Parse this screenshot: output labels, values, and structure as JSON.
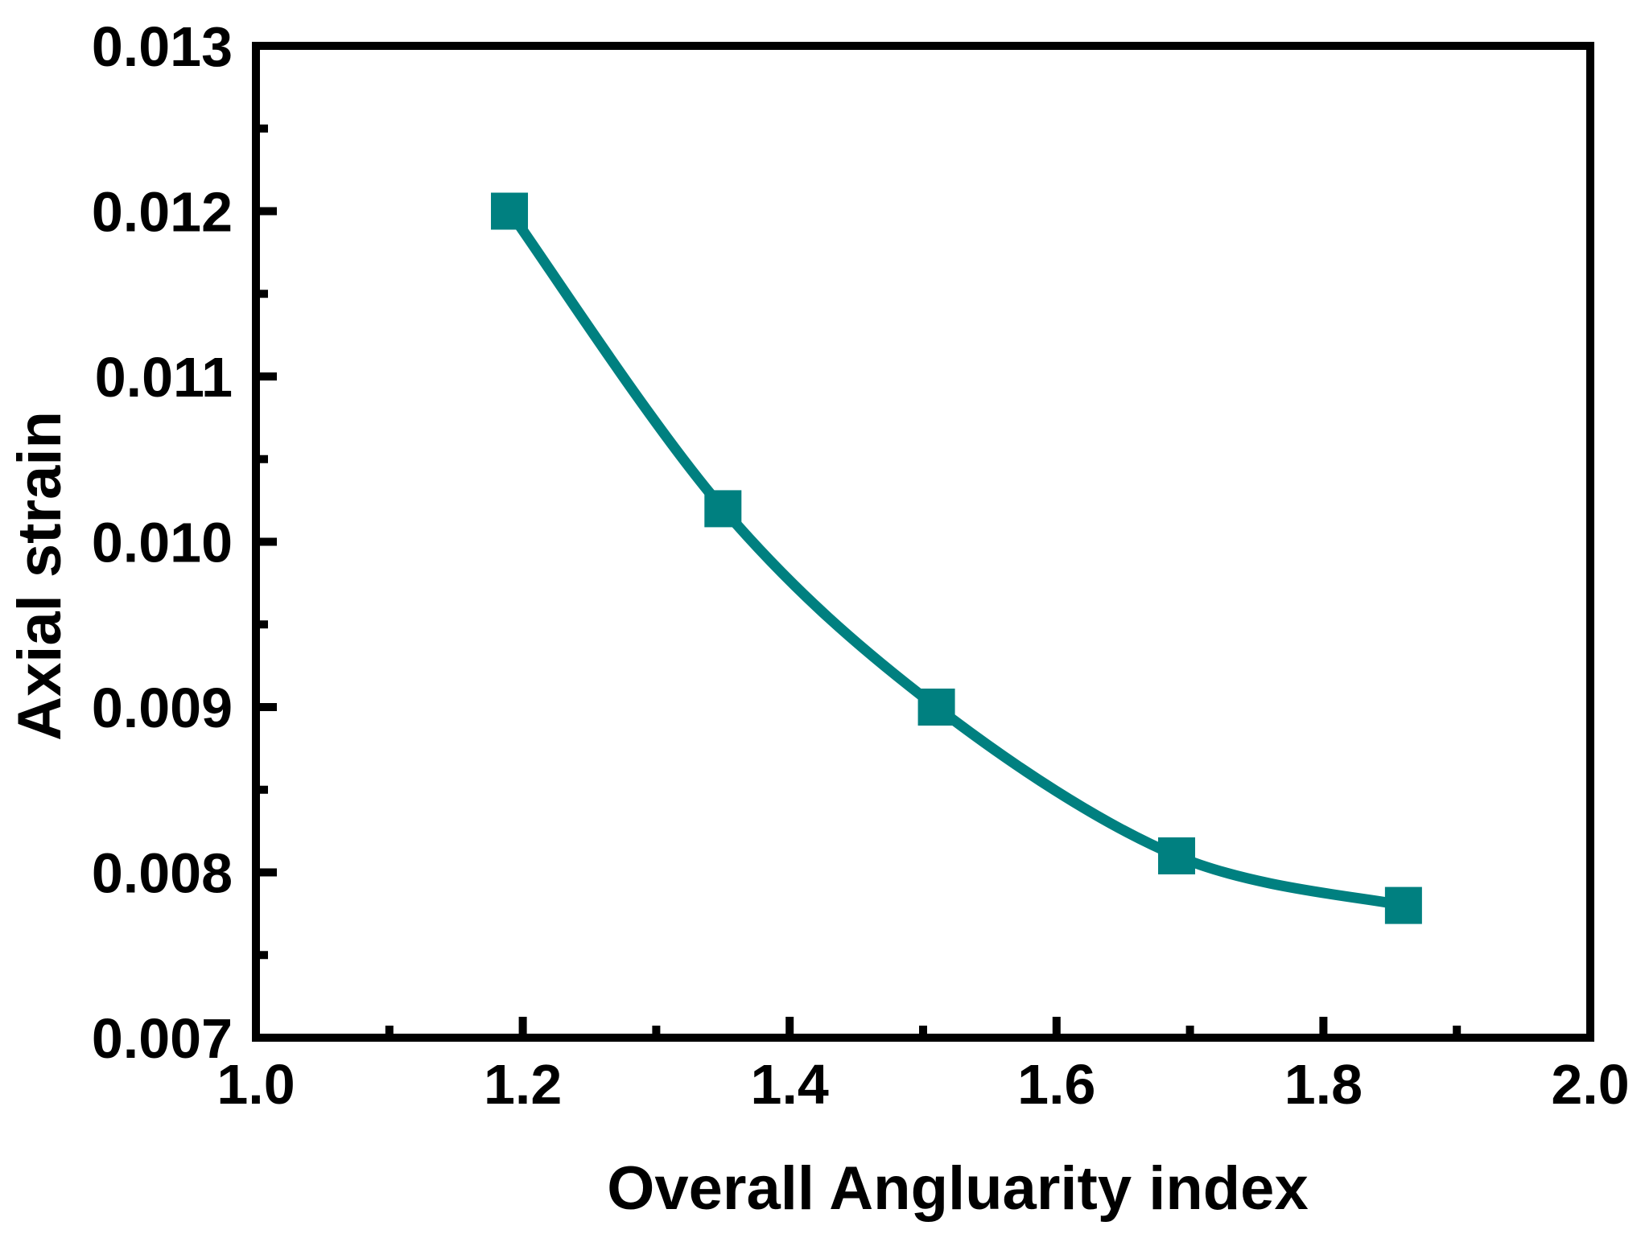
{
  "chart_data": {
    "type": "line",
    "title": "",
    "xlabel": "Overall Angluarity index",
    "ylabel": "Axial strain",
    "series": [
      {
        "name": "Axial strain vs Overall Angluarity index",
        "color": "#008080",
        "marker": "square",
        "x": [
          1.19,
          1.35,
          1.51,
          1.69,
          1.86
        ],
        "y": [
          0.012,
          0.0102,
          0.009,
          0.0081,
          0.0078
        ]
      }
    ],
    "xlim": [
      1.0,
      2.0
    ],
    "ylim": [
      0.007,
      0.013
    ],
    "x_tick_values": [
      1.0,
      1.2,
      1.4,
      1.6,
      1.8,
      2.0
    ],
    "x_tick_labels": [
      "1.0",
      "1.2",
      "1.4",
      "1.6",
      "1.8",
      "2.0"
    ],
    "x_minor_tick_values": [
      1.1,
      1.3,
      1.5,
      1.7,
      1.9
    ],
    "y_tick_values": [
      0.007,
      0.008,
      0.009,
      0.01,
      0.011,
      0.012,
      0.013
    ],
    "y_tick_labels": [
      "0.007",
      "0.008",
      "0.009",
      "0.010",
      "0.011",
      "0.012",
      "0.013"
    ],
    "y_minor_tick_values": [
      0.0075,
      0.0085,
      0.0095,
      0.0105,
      0.0115,
      0.0125
    ],
    "grid": false,
    "legend": "none",
    "axis_color": "#000000",
    "text_color": "#000000",
    "line_color": "#008080"
  }
}
